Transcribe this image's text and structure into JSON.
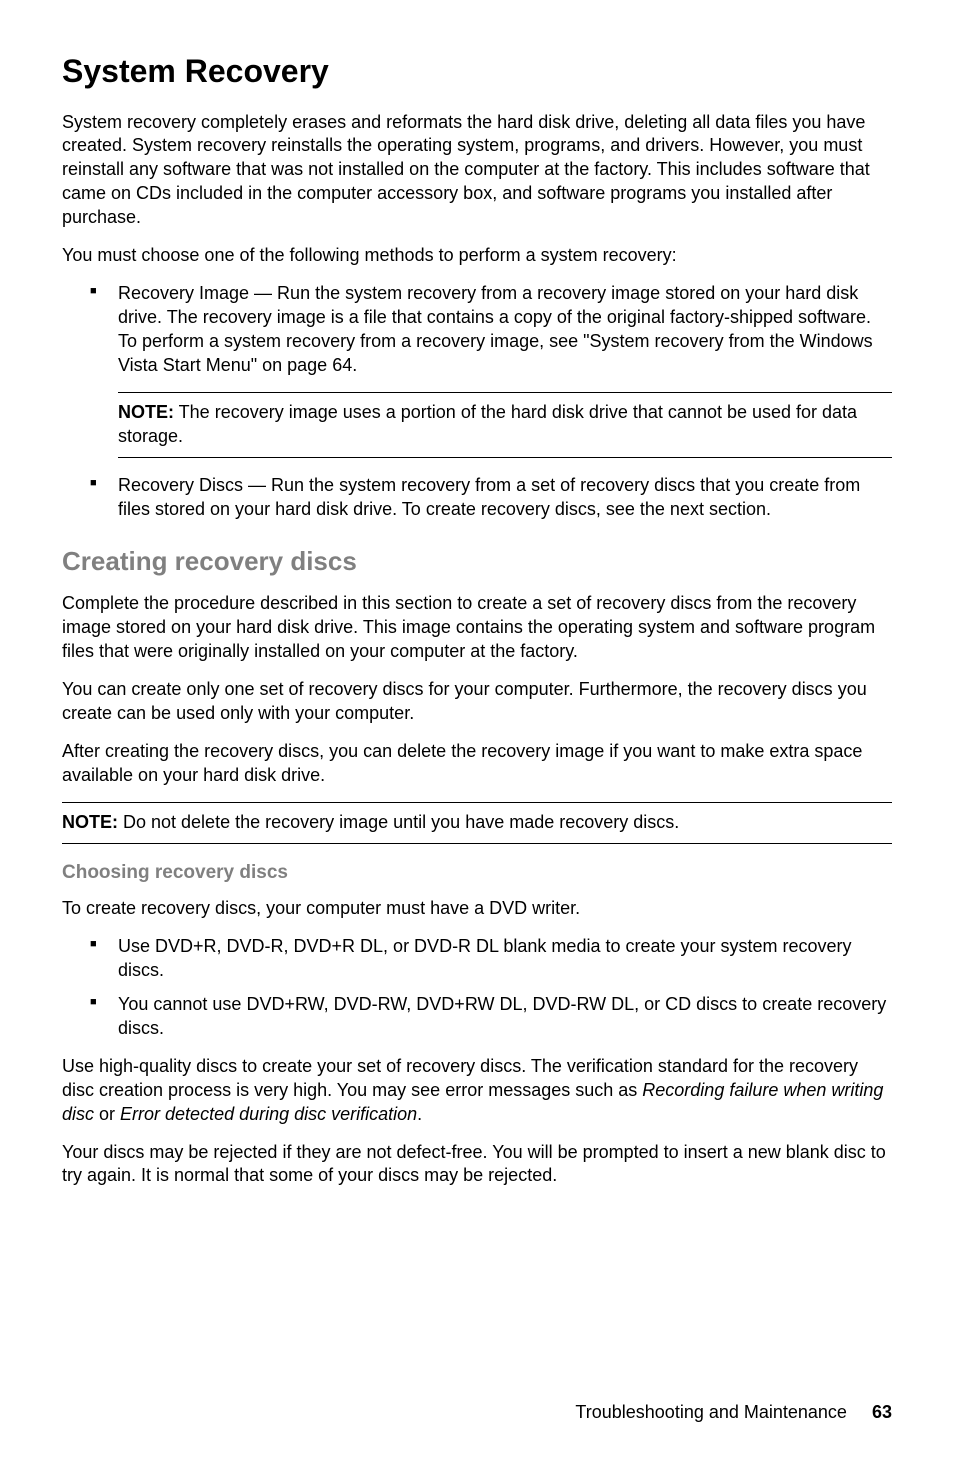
{
  "h1": {
    "text": "System Recovery",
    "color": "#000000",
    "fontsize": 32
  },
  "intro_p1": "System recovery completely erases and reformats the hard disk drive, deleting all data files you have created. System recovery reinstalls the operating system, programs, and drivers. However, you must reinstall any software that was not installed on the computer at the factory. This includes software that came on CDs included in the computer accessory box, and software programs you installed after purchase.",
  "intro_p2": "You must choose one of the following methods to perform a system recovery:",
  "bullet1": "Recovery Image — Run the system recovery from a recovery image stored on your hard disk drive. The recovery image is a file that contains a copy of the original factory-shipped software. To perform a system recovery from a recovery image, see \"System recovery from the Windows Vista Start Menu\" on page 64.",
  "note1_label": "NOTE:",
  "note1_text": " The recovery image uses a portion of the hard disk drive that cannot be used for data storage.",
  "bullet2": "Recovery Discs — Run the system recovery from a set of recovery discs that you create from files stored on your hard disk drive. To create recovery discs, see the next section.",
  "h2": {
    "text": "Creating recovery discs",
    "color": "#808080",
    "fontsize": 26
  },
  "crd_p1": "Complete the procedure described in this section to create a set of recovery discs from the recovery image stored on your hard disk drive. This image contains the operating system and software program files that were originally installed on your computer at the factory.",
  "crd_p2": "You can create only one set of recovery discs for your computer. Furthermore, the recovery discs you create can be used only with your computer.",
  "crd_p3": "After creating the recovery discs, you can delete the recovery image if you want to make extra space available on your hard disk drive.",
  "note2_label": "NOTE:",
  "note2_text": " Do not delete the recovery image until you have made recovery discs.",
  "h3": {
    "text": "Choosing recovery discs",
    "color": "#808080",
    "fontsize": 19
  },
  "chd_p1": "To create recovery discs, your computer must have a DVD writer.",
  "chd_b1": "Use DVD+R, DVD-R, DVD+R DL, or DVD-R DL blank media to create your system recovery discs.",
  "chd_b2": "You cannot use DVD+RW, DVD-RW, DVD+RW DL, DVD-RW DL, or CD discs to create recovery discs.",
  "chd_p2_a": "Use high-quality discs to create your set of recovery discs. The verification standard for the recovery disc creation process is very high. You may see error messages such as ",
  "chd_p2_i1": "Recording failure when writing disc",
  "chd_p2_b": " or ",
  "chd_p2_i2": "Error detected during disc verification",
  "chd_p2_c": ".",
  "chd_p3": "Your discs may be rejected if they are not defect-free. You will be prompted to insert a new blank disc to try again. It is normal that some of your discs may be rejected.",
  "footer_text": "Troubleshooting and Maintenance",
  "footer_page": "63",
  "body_fontsize": 18,
  "body_lineheight": 1.33,
  "body_color": "#000000"
}
